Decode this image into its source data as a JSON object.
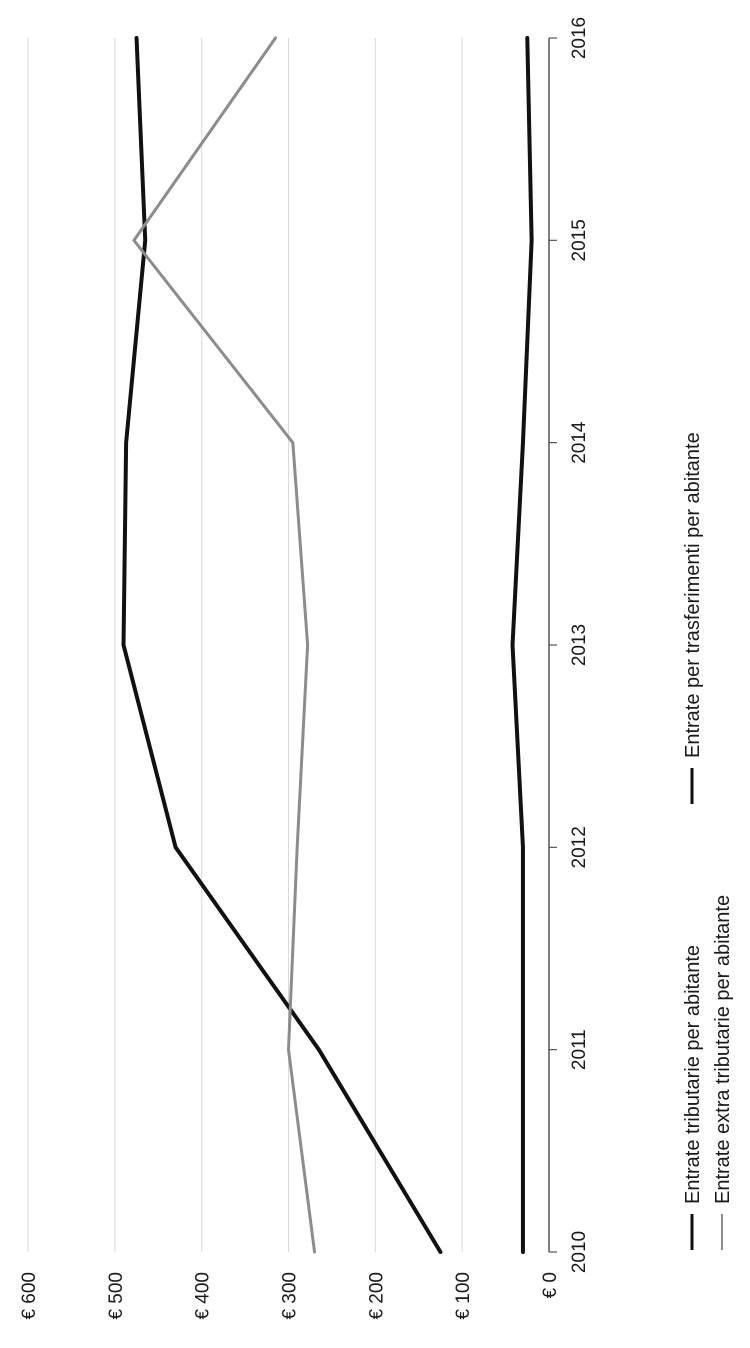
{
  "chart_data": {
    "type": "line",
    "x": [
      "2010",
      "2011",
      "2012",
      "2013",
      "2014",
      "2015",
      "2016"
    ],
    "ylim": [
      0,
      600
    ],
    "y_ticks": [
      "€ 0",
      "€ 100",
      "€ 200",
      "€ 300",
      "€ 400",
      "€ 500",
      "€ 600"
    ],
    "grid": true,
    "orientation": "rotated-90-clockwise",
    "legend_position": "bottom",
    "series": [
      {
        "name": "Entrate tributarie per abitante",
        "color": "#111111",
        "values": [
          125,
          265,
          430,
          490,
          487,
          465,
          475
        ]
      },
      {
        "name": "Entrate extra tributarie per abitante",
        "color": "#8c8c8c",
        "values": [
          270,
          300,
          290,
          278,
          295,
          478,
          315
        ]
      },
      {
        "name": "Entrate per trasferimenti per abitante",
        "color": "#111111",
        "values": [
          30,
          30,
          30,
          42,
          30,
          20,
          25
        ]
      }
    ]
  }
}
